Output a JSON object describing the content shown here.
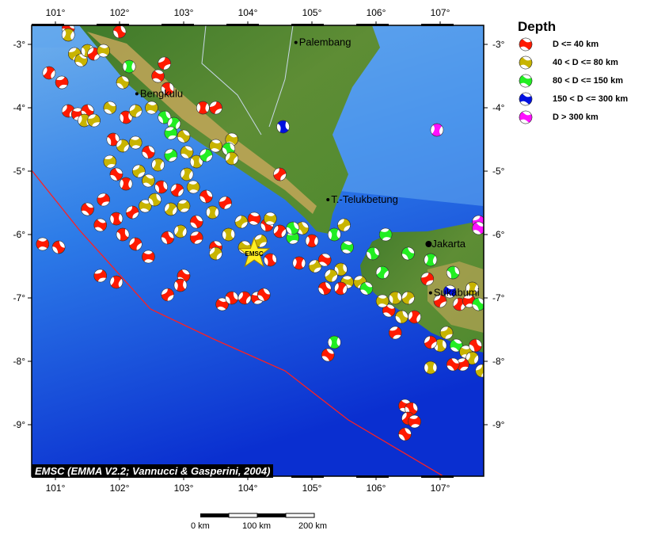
{
  "legend": {
    "title": "Depth",
    "items": [
      {
        "label": "D <= 40 km",
        "color": "#ff1a00"
      },
      {
        "label": "40 < D <= 80 km",
        "color": "#c8b400"
      },
      {
        "label": "80 < D <= 150 km",
        "color": "#22ee22"
      },
      {
        "label": "150 < D <= 300 km",
        "color": "#0010e0"
      },
      {
        "label": "D > 300 km",
        "color": "#ff10ff"
      }
    ]
  },
  "axes": {
    "lon_ticks": [
      "101°",
      "102°",
      "103°",
      "104°",
      "105°",
      "106°",
      "107°"
    ],
    "lat_ticks": [
      "-3°",
      "-4°",
      "-5°",
      "-6°",
      "-7°",
      "-8°",
      "-9°"
    ],
    "lon_range": [
      100.63,
      107.68
    ],
    "lat_range": [
      -2.7,
      -9.83
    ]
  },
  "cities": [
    {
      "name": "Palembang",
      "lon": 104.75,
      "lat": -2.97
    },
    {
      "name": "Bengkulu",
      "lon": 102.27,
      "lat": -3.78
    },
    {
      "name": "T.-Telukbetung",
      "lon": 105.25,
      "lat": -5.45
    },
    {
      "name": "Jakarta",
      "lon": 106.82,
      "lat": -6.15
    },
    {
      "name": "Sukabumi",
      "lon": 106.85,
      "lat": -6.92
    }
  ],
  "epicenter": {
    "label": "EMSC",
    "lon": 104.1,
    "lat": -6.3,
    "color": "#ffee22"
  },
  "credit": "EMSC (EMMA V2.2; Vannucci & Gasperini, 2004)",
  "scale": {
    "labels": [
      "0 km",
      "100 km",
      "200 km"
    ]
  },
  "events": [
    [
      101.2,
      -2.75,
      0
    ],
    [
      101.2,
      -2.85,
      1
    ],
    [
      101.3,
      -3.15,
      1
    ],
    [
      101.4,
      -3.25,
      1
    ],
    [
      101.5,
      -3.1,
      1
    ],
    [
      101.6,
      -3.15,
      0
    ],
    [
      101.75,
      -3.1,
      1
    ],
    [
      102.0,
      -2.8,
      0
    ],
    [
      100.9,
      -3.45,
      0
    ],
    [
      101.1,
      -3.6,
      0
    ],
    [
      102.05,
      -3.6,
      1
    ],
    [
      102.15,
      -3.35,
      2
    ],
    [
      102.7,
      -3.3,
      0
    ],
    [
      102.6,
      -3.5,
      0
    ],
    [
      102.75,
      -3.7,
      0
    ],
    [
      101.2,
      -4.05,
      0
    ],
    [
      101.35,
      -4.1,
      0
    ],
    [
      101.5,
      -4.05,
      0
    ],
    [
      101.45,
      -4.2,
      1
    ],
    [
      101.6,
      -4.2,
      1
    ],
    [
      101.85,
      -4.0,
      1
    ],
    [
      102.1,
      -4.15,
      0
    ],
    [
      102.25,
      -4.05,
      1
    ],
    [
      102.5,
      -4.0,
      1
    ],
    [
      102.7,
      -4.15,
      2
    ],
    [
      102.85,
      -4.25,
      2
    ],
    [
      102.8,
      -4.4,
      2
    ],
    [
      103.0,
      -4.45,
      1
    ],
    [
      103.3,
      -4.0,
      0
    ],
    [
      103.5,
      -4.0,
      0
    ],
    [
      103.75,
      -4.5,
      1
    ],
    [
      101.9,
      -4.5,
      0
    ],
    [
      102.05,
      -4.6,
      1
    ],
    [
      102.25,
      -4.55,
      1
    ],
    [
      102.45,
      -4.7,
      0
    ],
    [
      102.6,
      -4.9,
      1
    ],
    [
      102.8,
      -4.75,
      2
    ],
    [
      103.05,
      -4.7,
      1
    ],
    [
      103.2,
      -4.85,
      1
    ],
    [
      103.35,
      -4.75,
      2
    ],
    [
      103.5,
      -4.6,
      1
    ],
    [
      103.7,
      -4.65,
      2
    ],
    [
      103.75,
      -4.8,
      1
    ],
    [
      101.85,
      -4.85,
      1
    ],
    [
      101.95,
      -5.05,
      0
    ],
    [
      102.1,
      -5.2,
      0
    ],
    [
      102.3,
      -5.0,
      1
    ],
    [
      102.45,
      -5.15,
      1
    ],
    [
      102.65,
      -5.25,
      0
    ],
    [
      102.9,
      -5.3,
      0
    ],
    [
      103.15,
      -5.25,
      1
    ],
    [
      103.35,
      -5.4,
      0
    ],
    [
      103.05,
      -5.05,
      1
    ],
    [
      101.75,
      -5.45,
      0
    ],
    [
      101.5,
      -5.6,
      0
    ],
    [
      101.95,
      -5.75,
      0
    ],
    [
      102.2,
      -5.65,
      0
    ],
    [
      102.4,
      -5.55,
      1
    ],
    [
      102.55,
      -5.45,
      1
    ],
    [
      102.8,
      -5.6,
      1
    ],
    [
      103.0,
      -5.55,
      1
    ],
    [
      103.2,
      -5.8,
      0
    ],
    [
      103.45,
      -5.65,
      1
    ],
    [
      103.65,
      -5.5,
      0
    ],
    [
      101.7,
      -5.85,
      0
    ],
    [
      102.05,
      -6.0,
      0
    ],
    [
      102.25,
      -6.15,
      0
    ],
    [
      102.45,
      -6.35,
      0
    ],
    [
      102.75,
      -6.05,
      0
    ],
    [
      102.95,
      -5.95,
      1
    ],
    [
      103.2,
      -6.05,
      0
    ],
    [
      103.5,
      -6.2,
      0
    ],
    [
      103.7,
      -6.0,
      1
    ],
    [
      103.9,
      -5.8,
      1
    ],
    [
      104.1,
      -5.75,
      0
    ],
    [
      104.3,
      -5.85,
      0
    ],
    [
      104.5,
      -5.95,
      0
    ],
    [
      104.7,
      -6.05,
      2
    ],
    [
      104.85,
      -5.9,
      1
    ],
    [
      105.0,
      -6.1,
      0
    ],
    [
      104.2,
      -6.1,
      1
    ],
    [
      103.95,
      -6.2,
      1
    ],
    [
      104.35,
      -6.4,
      0
    ],
    [
      103.5,
      -6.3,
      1
    ],
    [
      100.8,
      -6.15,
      0
    ],
    [
      101.05,
      -6.2,
      0
    ],
    [
      101.95,
      -6.75,
      0
    ],
    [
      101.7,
      -6.65,
      0
    ],
    [
      103.0,
      -6.65,
      0
    ],
    [
      102.95,
      -6.8,
      0
    ],
    [
      102.75,
      -6.95,
      0
    ],
    [
      103.6,
      -7.1,
      0
    ],
    [
      103.75,
      -7.0,
      0
    ],
    [
      103.95,
      -7.0,
      0
    ],
    [
      104.15,
      -7.0,
      0
    ],
    [
      104.25,
      -6.95,
      0
    ],
    [
      104.8,
      -6.45,
      0
    ],
    [
      105.05,
      -6.5,
      1
    ],
    [
      105.2,
      -6.4,
      0
    ],
    [
      105.45,
      -6.55,
      1
    ],
    [
      105.3,
      -6.65,
      1
    ],
    [
      105.55,
      -6.75,
      1
    ],
    [
      105.2,
      -6.85,
      0
    ],
    [
      105.45,
      -6.85,
      0
    ],
    [
      105.75,
      -6.75,
      1
    ],
    [
      105.85,
      -6.85,
      2
    ],
    [
      105.35,
      -6.0,
      2
    ],
    [
      105.5,
      -5.85,
      1
    ],
    [
      105.55,
      -6.2,
      2
    ],
    [
      105.95,
      -6.3,
      2
    ],
    [
      106.1,
      -6.6,
      2
    ],
    [
      106.15,
      -6.0,
      2
    ],
    [
      106.5,
      -6.3,
      2
    ],
    [
      106.85,
      -6.4,
      2
    ],
    [
      106.8,
      -6.7,
      0
    ],
    [
      106.2,
      -7.2,
      0
    ],
    [
      106.3,
      -7.0,
      1
    ],
    [
      106.5,
      -7.0,
      1
    ],
    [
      106.1,
      -7.05,
      1
    ],
    [
      106.4,
      -7.3,
      1
    ],
    [
      106.6,
      -7.3,
      0
    ],
    [
      106.3,
      -7.55,
      0
    ],
    [
      105.25,
      -7.9,
      0
    ],
    [
      105.35,
      -7.7,
      2
    ],
    [
      107.0,
      -7.05,
      0
    ],
    [
      107.15,
      -6.9,
      3
    ],
    [
      107.2,
      -6.6,
      2
    ],
    [
      107.3,
      -7.1,
      0
    ],
    [
      107.45,
      -7.05,
      0
    ],
    [
      107.6,
      -7.1,
      2
    ],
    [
      107.5,
      -6.85,
      1
    ],
    [
      107.1,
      -7.55,
      1
    ],
    [
      107.25,
      -7.75,
      2
    ],
    [
      107.0,
      -7.75,
      1
    ],
    [
      106.85,
      -7.7,
      0
    ],
    [
      107.4,
      -7.85,
      1
    ],
    [
      107.55,
      -7.75,
      0
    ],
    [
      107.5,
      -7.95,
      1
    ],
    [
      107.35,
      -8.05,
      0
    ],
    [
      107.2,
      -8.05,
      0
    ],
    [
      106.85,
      -8.1,
      1
    ],
    [
      107.65,
      -8.15,
      1
    ],
    [
      106.45,
      -8.7,
      0
    ],
    [
      106.55,
      -8.75,
      0
    ],
    [
      106.5,
      -8.9,
      0
    ],
    [
      106.6,
      -8.95,
      0
    ],
    [
      106.45,
      -9.15,
      0
    ],
    [
      106.95,
      -4.35,
      4
    ],
    [
      107.6,
      -5.8,
      4
    ],
    [
      107.6,
      -5.9,
      4
    ],
    [
      104.55,
      -4.3,
      3
    ],
    [
      104.5,
      -5.05,
      0
    ],
    [
      104.35,
      -5.75,
      1
    ],
    [
      104.7,
      -5.9,
      2
    ]
  ]
}
